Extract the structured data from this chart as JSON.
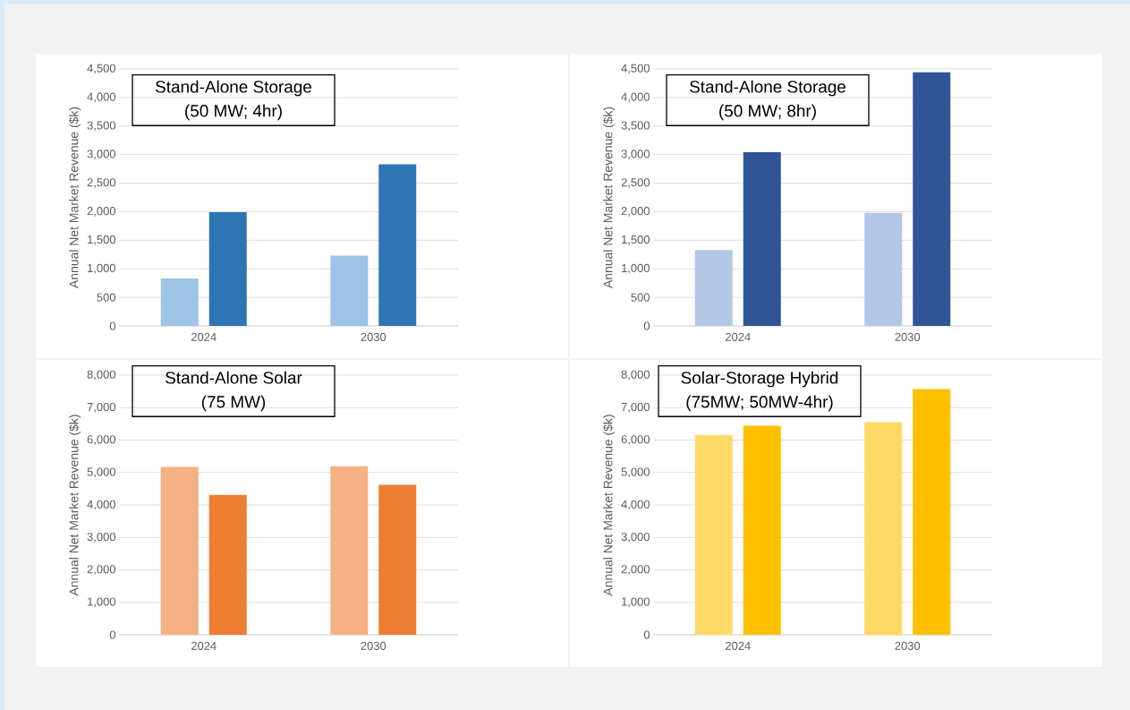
{
  "chart_data": [
    {
      "type": "bar",
      "title": "Stand-Alone Storage",
      "subtitle": "(50 MW; 4hr)",
      "ylabel": "Annual Net Market Revenue ($k)",
      "categories": [
        "2024",
        "2030"
      ],
      "series": [
        {
          "color": "#9dc3e6",
          "values": [
            830,
            1230
          ]
        },
        {
          "color": "#2e75b6",
          "values": [
            1990,
            2830
          ]
        }
      ],
      "ylim": [
        0,
        4500
      ],
      "yticks": [
        0,
        500,
        {
          "value": 1000,
          "label": "1,000"
        },
        {
          "value": 1500,
          "label": "1,500"
        },
        {
          "value": 2000,
          "label": "2,000"
        },
        {
          "value": 2500,
          "label": "2,500"
        },
        {
          "value": 3000,
          "label": "3,000"
        },
        {
          "value": 3500,
          "label": "3,500"
        },
        {
          "value": 4000,
          "label": "4,000"
        },
        {
          "value": 4500,
          "label": "4,500"
        }
      ],
      "grid": "y"
    },
    {
      "type": "bar",
      "title": "Stand-Alone Storage",
      "subtitle": "(50 MW; 8hr)",
      "ylabel": "Annual Net Market Revenue ($k)",
      "categories": [
        "2024",
        "2030"
      ],
      "series": [
        {
          "color": "#b4c7e7",
          "values": [
            1330,
            1980
          ]
        },
        {
          "color": "#2f5597",
          "values": [
            3040,
            4440
          ]
        }
      ],
      "ylim": [
        0,
        4500
      ],
      "yticks": [
        0,
        500,
        {
          "value": 1000,
          "label": "1,000"
        },
        {
          "value": 1500,
          "label": "1,500"
        },
        {
          "value": 2000,
          "label": "2,000"
        },
        {
          "value": 2500,
          "label": "2,500"
        },
        {
          "value": 3000,
          "label": "3,000"
        },
        {
          "value": 3500,
          "label": "3,500"
        },
        {
          "value": 4000,
          "label": "4,000"
        },
        {
          "value": 4500,
          "label": "4,500"
        }
      ],
      "grid": "y"
    },
    {
      "type": "bar",
      "title": "Stand-Alone Solar",
      "subtitle": "(75 MW)",
      "ylabel": "Annual Net Market Revenue ($k)",
      "categories": [
        "2024",
        "2030"
      ],
      "series": [
        {
          "color": "#f4b183",
          "values": [
            5170,
            5190
          ]
        },
        {
          "color": "#ed7d31",
          "values": [
            4310,
            4620
          ]
        }
      ],
      "ylim": [
        0,
        8000
      ],
      "yticks": [
        0,
        {
          "value": 1000,
          "label": "1,000"
        },
        {
          "value": 2000,
          "label": "2,000"
        },
        {
          "value": 3000,
          "label": "3,000"
        },
        {
          "value": 4000,
          "label": "4,000"
        },
        {
          "value": 5000,
          "label": "5,000"
        },
        {
          "value": 6000,
          "label": "6,000"
        },
        {
          "value": 7000,
          "label": "7,000"
        },
        {
          "value": 8000,
          "label": "8,000"
        }
      ],
      "grid": "y"
    },
    {
      "type": "bar",
      "title": "Solar-Storage Hybrid",
      "subtitle": "(75MW; 50MW-4hr)",
      "ylabel": "Annual Net Market Revenue ($k)",
      "categories": [
        "2024",
        "2030"
      ],
      "series": [
        {
          "color": "#ffd966",
          "values": [
            6150,
            6550
          ]
        },
        {
          "color": "#ffc000",
          "values": [
            6440,
            7570
          ]
        }
      ],
      "ylim": [
        0,
        8000
      ],
      "yticks": [
        0,
        {
          "value": 1000,
          "label": "1,000"
        },
        {
          "value": 2000,
          "label": "2,000"
        },
        {
          "value": 3000,
          "label": "3,000"
        },
        {
          "value": 4000,
          "label": "4,000"
        },
        {
          "value": 5000,
          "label": "5,000"
        },
        {
          "value": 6000,
          "label": "6,000"
        },
        {
          "value": 7000,
          "label": "7,000"
        },
        {
          "value": 8000,
          "label": "8,000"
        }
      ],
      "grid": "y"
    }
  ]
}
